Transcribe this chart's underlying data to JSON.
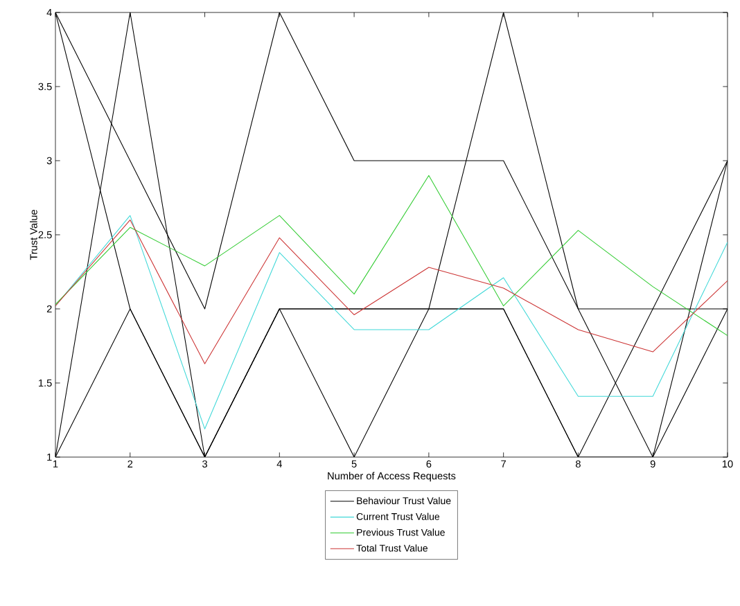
{
  "chart_data": {
    "type": "line",
    "xlabel": "Number of Access Requests",
    "ylabel": "Trust Value",
    "x": [
      1,
      2,
      3,
      4,
      5,
      6,
      7,
      8,
      9,
      10
    ],
    "xlim": [
      1,
      10
    ],
    "ylim": [
      1,
      4
    ],
    "xticks": [
      1,
      2,
      3,
      4,
      5,
      6,
      7,
      8,
      9,
      10
    ],
    "yticks": [
      1,
      1.5,
      2,
      2.5,
      3,
      3.5,
      4
    ],
    "legend": "bottom",
    "marker": "none",
    "line_style": "solid",
    "series": [
      {
        "name": "Behaviour Trust Value",
        "color": "#000000",
        "values": [
          4,
          3,
          2,
          4,
          3,
          3,
          3,
          2,
          1,
          3
        ]
      },
      {
        "color": "#000000",
        "values": [
          4,
          2,
          1,
          2,
          2,
          2,
          2,
          1,
          2,
          3
        ]
      },
      {
        "color": "#000000",
        "values": [
          1,
          4,
          1,
          2,
          1,
          2,
          4,
          2,
          2,
          2
        ]
      },
      {
        "color": "#000000",
        "values": [
          1,
          2,
          1,
          2,
          2,
          2,
          2,
          1,
          1,
          2
        ]
      },
      {
        "name": "Current Trust Value",
        "color": "#3fd8d8",
        "values": [
          2.02,
          2.63,
          1.19,
          2.38,
          1.86,
          1.86,
          2.21,
          1.41,
          1.41,
          2.45
        ]
      },
      {
        "name": "Previous Trust Value",
        "color": "#33cc33",
        "values": [
          2.03,
          2.55,
          2.29,
          2.63,
          2.1,
          2.9,
          2.02,
          2.53,
          2.15,
          1.82
        ]
      },
      {
        "name": "Total Trust Value",
        "color": "#cc3333",
        "values": [
          2.02,
          2.6,
          1.63,
          2.48,
          1.96,
          2.28,
          2.14,
          1.86,
          1.71,
          2.19
        ]
      }
    ]
  }
}
